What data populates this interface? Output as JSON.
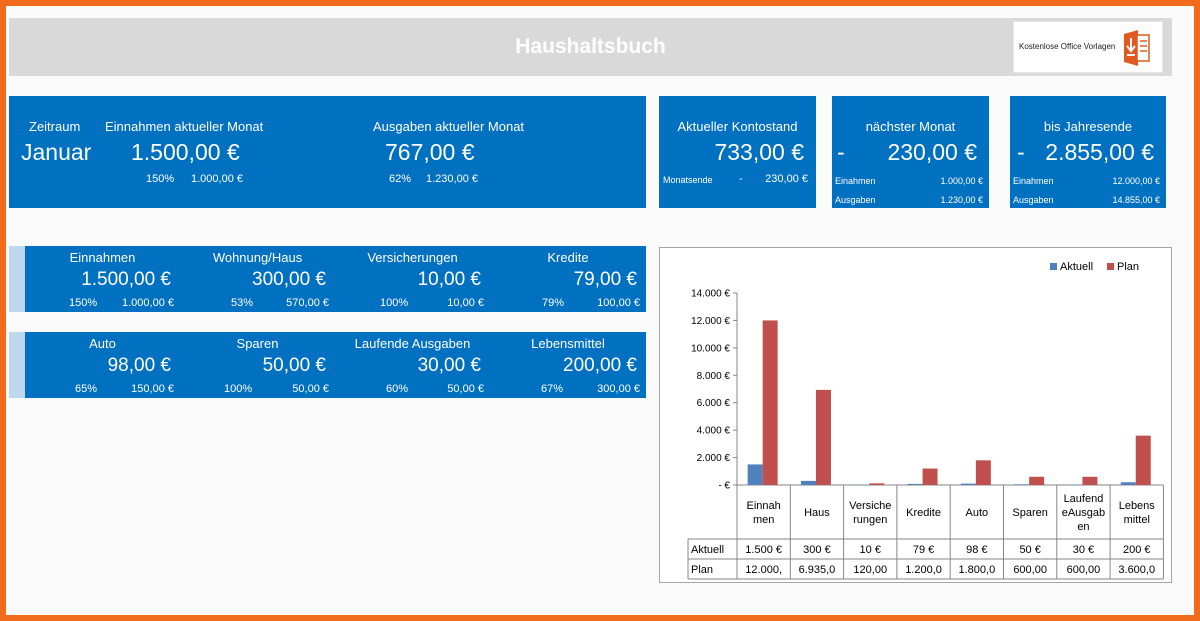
{
  "header": {
    "title": "Haushaltsbuch",
    "logo_text": "Kostenlose Office Vorlagen",
    "logo_icon": "document-download-icon"
  },
  "summary": {
    "zeitraum_label": "Zeitraum",
    "zeitraum_value": "Januar",
    "einnahmen_label": "Einnahmen aktueller Monat",
    "einnahmen_value": "1.500,00 €",
    "einnahmen_pct": "150%",
    "einnahmen_plan": "1.000,00 €",
    "ausgaben_label": "Ausgaben aktueller Monat",
    "ausgaben_value": "767,00 €",
    "ausgaben_pct": "62%",
    "ausgaben_plan": "1.230,00 €"
  },
  "kontostand": {
    "label": "Aktueller Kontostand",
    "value": "733,00 €",
    "sub_label": "Monatsende",
    "sub_sign": "-",
    "sub_value": "230,00 €"
  },
  "naechster_monat": {
    "label": "nächster Monat",
    "sign": "-",
    "value": "230,00 €",
    "einnahmen_label": "Einahmen",
    "einnahmen_value": "1.000,00 €",
    "ausgaben_label": "Ausgaben",
    "ausgaben_value": "1.230,00 €"
  },
  "jahresende": {
    "label": "bis Jahresende",
    "sign": "-",
    "value": "2.855,00 €",
    "einnahmen_label": "Einahmen",
    "einnahmen_value": "12.000,00 €",
    "ausgaben_label": "Ausgaben",
    "ausgaben_value": "14.855,00 €"
  },
  "categories_row1": [
    {
      "name": "Einnahmen",
      "value": "1.500,00 €",
      "pct": "150%",
      "plan": "1.000,00 €"
    },
    {
      "name": "Wohnung/Haus",
      "value": "300,00 €",
      "pct": "53%",
      "plan": "570,00 €"
    },
    {
      "name": "Versicherungen",
      "value": "10,00 €",
      "pct": "100%",
      "plan": "10,00 €"
    },
    {
      "name": "Kredite",
      "value": "79,00 €",
      "pct": "79%",
      "plan": "100,00 €"
    }
  ],
  "categories_row2": [
    {
      "name": "Auto",
      "value": "98,00 €",
      "pct": "65%",
      "plan": "150,00 €"
    },
    {
      "name": "Sparen",
      "value": "50,00 €",
      "pct": "100%",
      "plan": "50,00 €"
    },
    {
      "name": "Laufende Ausgaben",
      "value": "30,00 €",
      "pct": "60%",
      "plan": "50,00 €"
    },
    {
      "name": "Lebensmittel",
      "value": "200,00 €",
      "pct": "67%",
      "plan": "300,00 €"
    }
  ],
  "chart_data": {
    "type": "bar",
    "categories": [
      "Einnahmen",
      "Haus",
      "Versicherungen",
      "Kredite",
      "Auto",
      "Sparen",
      "LaufendeAusgaben",
      "Lebensmittel"
    ],
    "category_label_lines": [
      [
        "Einnah",
        "men"
      ],
      [
        "Haus"
      ],
      [
        "Versiche",
        "rungen"
      ],
      [
        "Kredite"
      ],
      [
        "Auto"
      ],
      [
        "Sparen"
      ],
      [
        "Laufend",
        "eAusgab",
        "en"
      ],
      [
        "Lebens",
        "mittel"
      ]
    ],
    "series": [
      {
        "name": "Aktuell",
        "color": "#4f81bd",
        "values": [
          1500,
          300,
          10,
          79,
          98,
          50,
          30,
          200
        ],
        "labels": [
          "1.500 €",
          "300 €",
          "10 €",
          "79 €",
          "98 €",
          "50 €",
          "30 €",
          "200 €"
        ]
      },
      {
        "name": "Plan",
        "color": "#c0504d",
        "values": [
          12000,
          6935,
          120,
          1200,
          1800,
          600,
          600,
          3600
        ],
        "labels": [
          "12.000,",
          "6.935,0",
          "120,00",
          "1.200,0",
          "1.800,0",
          "600,00",
          "600,00",
          "3.600,0"
        ]
      }
    ],
    "ylim": [
      0,
      14000
    ],
    "yticks": [
      14000,
      12000,
      10000,
      8000,
      6000,
      4000,
      2000,
      0
    ],
    "ytick_labels": [
      "14.000 €",
      "12.000 €",
      "10.000 €",
      "8.000 €",
      "6.000 €",
      "4.000 €",
      "2.000 €",
      "-   €"
    ],
    "legend_position": "top-right",
    "data_table": true,
    "grid": false
  }
}
